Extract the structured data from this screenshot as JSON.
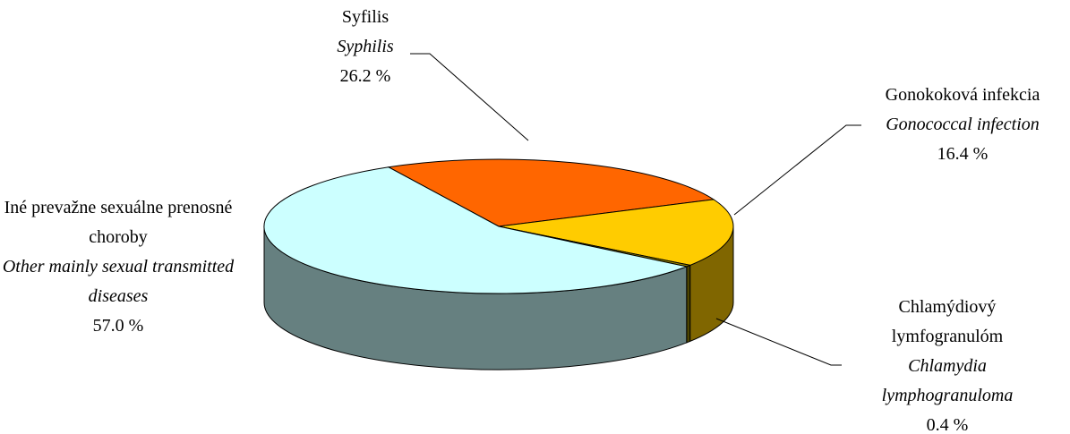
{
  "chart_data": {
    "type": "pie",
    "categories": [
      "Syfilis",
      "Gonokoková infekcia",
      "Chlamýdiový lymfogranulóm",
      "Iné prevažne sexuálne prenosné choroby"
    ],
    "categories_en": [
      "Syphilis",
      "Gonococcal infection",
      "Chlamydia lymphogranuloma",
      "Other mainly sexual transmitted diseases"
    ],
    "values": [
      26.2,
      16.4,
      0.4,
      57.0
    ],
    "value_labels": [
      "26.2 %",
      "16.4 %",
      "0.4 %",
      "57.0 %"
    ],
    "colors": [
      "#ff6600",
      "#ffcc00",
      "#998800",
      "#ccffff"
    ]
  }
}
